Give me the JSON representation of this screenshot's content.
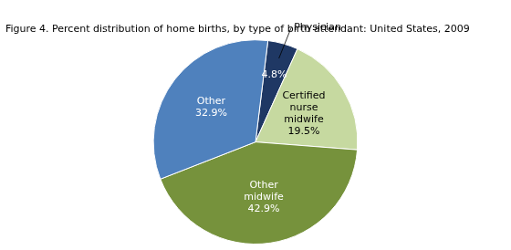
{
  "chart_data": {
    "type": "pie",
    "title": "Figure 4. Percent distribution of home births, by type of birth attendant: United States, 2009",
    "categories": [
      "Physician",
      "Certified\nnurse\nmidwife",
      "Other\nmidwife",
      "Other"
    ],
    "values": [
      4.8,
      19.5,
      42.9,
      32.9
    ],
    "value_labels": [
      "4.8%",
      "19.5%",
      "42.9%",
      "32.9%"
    ],
    "colors": [
      "#1f3864",
      "#c6d9a0",
      "#76923c",
      "#4f81bd"
    ],
    "data_labels": true
  }
}
